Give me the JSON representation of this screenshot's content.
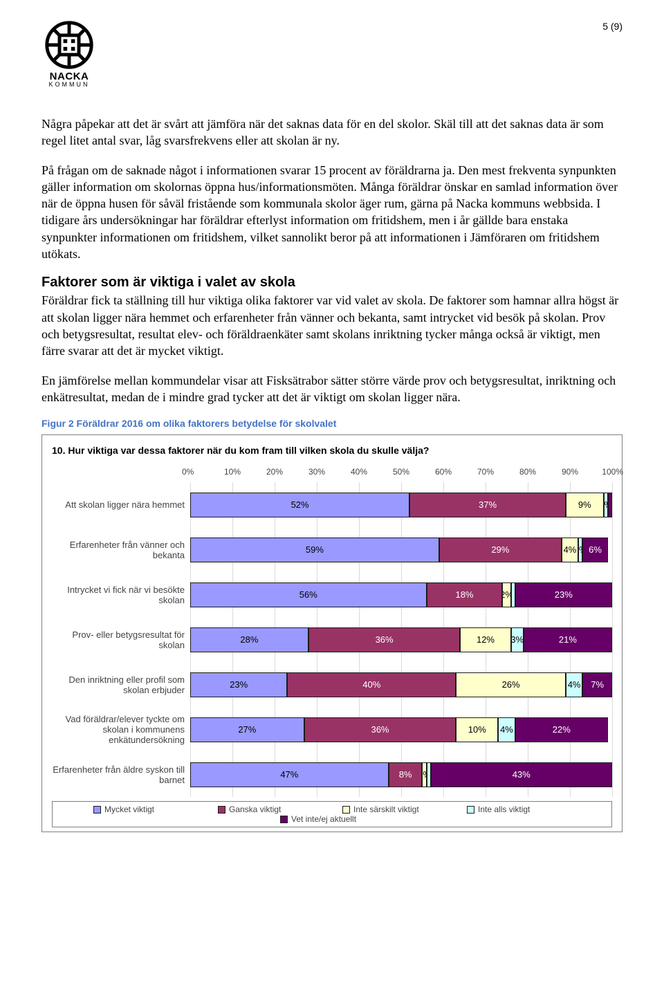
{
  "page_number": "5 (9)",
  "logo": {
    "main": "NACKA",
    "sub": "KOMMUN"
  },
  "paragraphs": {
    "p1": "Några påpekar att det är svårt att jämföra när det saknas data för en del skolor. Skäl till att det saknas data är som regel litet antal svar, låg svarsfrekvens eller att skolan är ny.",
    "p2": "På frågan om de saknade något i informationen svarar 15 procent av föräldrarna ja. Den mest frekventa synpunkten gäller information om skolornas öppna hus/informationsmöten. Många föräldrar önskar en samlad information över när de öppna husen för såväl fristående som kommunala skolor äger rum, gärna på Nacka kommuns webbsida. I tidigare års undersökningar har föräldrar efterlyst information om fritidshem, men i år gällde bara enstaka synpunkter informationen om fritidshem, vilket sannolikt beror på att informationen i Jämföraren om fritidshem utökats.",
    "h1": "Faktorer som är viktiga i valet av skola",
    "p3": "Föräldrar fick ta ställning till hur viktiga olika faktorer var vid valet av skola. De faktorer som hamnar allra högst är att skolan ligger nära hemmet och erfarenheter från vänner och bekanta, samt intrycket vid besök på skolan. Prov och betygsresultat, resultat elev- och föräldraenkäter samt skolans inriktning tycker många också är viktigt, men färre svarar att det är mycket viktigt.",
    "p4": "En jämförelse mellan kommundelar visar att Fisksätrabor sätter större värde prov och betygsresultat, inriktning och enkätresultat, medan de i mindre grad tycker att det är viktigt om skolan ligger nära.",
    "figcap": "Figur 2 Föräldrar 2016 om olika faktorers betydelse för skolvalet"
  },
  "chart": {
    "title": "10. Hur viktiga var dessa faktorer när du kom fram till vilken skola du skulle välja?",
    "axis_labels": [
      "0%",
      "10%",
      "20%",
      "30%",
      "40%",
      "50%",
      "60%",
      "70%",
      "80%",
      "90%",
      "100%"
    ],
    "colors": {
      "mycket": "#9999ff",
      "ganska": "#993366",
      "inte_sarskilt": "#ffffcc",
      "inte_alls": "#ccffff",
      "vet_ej": "#660066"
    },
    "legend": [
      {
        "label": "Mycket viktigt",
        "color_key": "mycket"
      },
      {
        "label": "Ganska viktigt",
        "color_key": "ganska"
      },
      {
        "label": "Inte särskilt viktigt",
        "color_key": "inte_sarskilt"
      },
      {
        "label": "Inte alls viktigt",
        "color_key": "inte_alls"
      },
      {
        "label": "Vet inte/ej aktuellt",
        "color_key": "vet_ej"
      }
    ],
    "rows": [
      {
        "label": "Att skolan ligger nära hemmet",
        "segments": [
          {
            "v": 52,
            "t": "52%",
            "c": "mycket"
          },
          {
            "v": 37,
            "t": "37%",
            "c": "ganska"
          },
          {
            "v": 9,
            "t": "9%",
            "c": "inte_sarskilt"
          },
          {
            "v": 1,
            "t": "1%",
            "c": "inte_alls"
          },
          {
            "v": 1,
            "t": "",
            "c": "vet_ej"
          }
        ]
      },
      {
        "label": "Erfarenheter från vänner och bekanta",
        "segments": [
          {
            "v": 59,
            "t": "59%",
            "c": "mycket"
          },
          {
            "v": 29,
            "t": "29%",
            "c": "ganska"
          },
          {
            "v": 4,
            "t": "4%",
            "c": "inte_sarskilt"
          },
          {
            "v": 1,
            "t": "1%",
            "c": "inte_alls"
          },
          {
            "v": 6,
            "t": "6%",
            "c": "vet_ej"
          }
        ]
      },
      {
        "label": "Intrycket vi fick när vi besökte skolan",
        "segments": [
          {
            "v": 56,
            "t": "56%",
            "c": "mycket"
          },
          {
            "v": 18,
            "t": "18%",
            "c": "ganska"
          },
          {
            "v": 2,
            "t": "2%",
            "c": "inte_sarskilt"
          },
          {
            "v": 1,
            "t": "",
            "c": "inte_alls"
          },
          {
            "v": 23,
            "t": "23%",
            "c": "vet_ej"
          }
        ]
      },
      {
        "label": "Prov- eller betygsresultat för skolan",
        "segments": [
          {
            "v": 28,
            "t": "28%",
            "c": "mycket"
          },
          {
            "v": 36,
            "t": "36%",
            "c": "ganska"
          },
          {
            "v": 12,
            "t": "12%",
            "c": "inte_sarskilt"
          },
          {
            "v": 3,
            "t": "3%",
            "c": "inte_alls"
          },
          {
            "v": 21,
            "t": "21%",
            "c": "vet_ej"
          }
        ]
      },
      {
        "label": "Den inriktning eller profil som skolan erbjuder",
        "segments": [
          {
            "v": 23,
            "t": "23%",
            "c": "mycket"
          },
          {
            "v": 40,
            "t": "40%",
            "c": "ganska"
          },
          {
            "v": 26,
            "t": "26%",
            "c": "inte_sarskilt"
          },
          {
            "v": 4,
            "t": "4%",
            "c": "inte_alls"
          },
          {
            "v": 7,
            "t": "7%",
            "c": "vet_ej"
          }
        ]
      },
      {
        "label": "Vad föräldrar/elever tyckte om skolan i kommunens enkätundersökning",
        "segments": [
          {
            "v": 27,
            "t": "27%",
            "c": "mycket"
          },
          {
            "v": 36,
            "t": "36%",
            "c": "ganska"
          },
          {
            "v": 10,
            "t": "10%",
            "c": "inte_sarskilt"
          },
          {
            "v": 4,
            "t": "4%",
            "c": "inte_alls"
          },
          {
            "v": 22,
            "t": "22%",
            "c": "vet_ej"
          }
        ]
      },
      {
        "label": "Erfarenheter från äldre syskon till barnet",
        "segments": [
          {
            "v": 47,
            "t": "47%",
            "c": "mycket"
          },
          {
            "v": 8,
            "t": "8%",
            "c": "ganska"
          },
          {
            "v": 1,
            "t": "1%",
            "c": "inte_sarskilt"
          },
          {
            "v": 1,
            "t": "",
            "c": "inte_alls"
          },
          {
            "v": 43,
            "t": "43%",
            "c": "vet_ej"
          }
        ]
      }
    ]
  }
}
